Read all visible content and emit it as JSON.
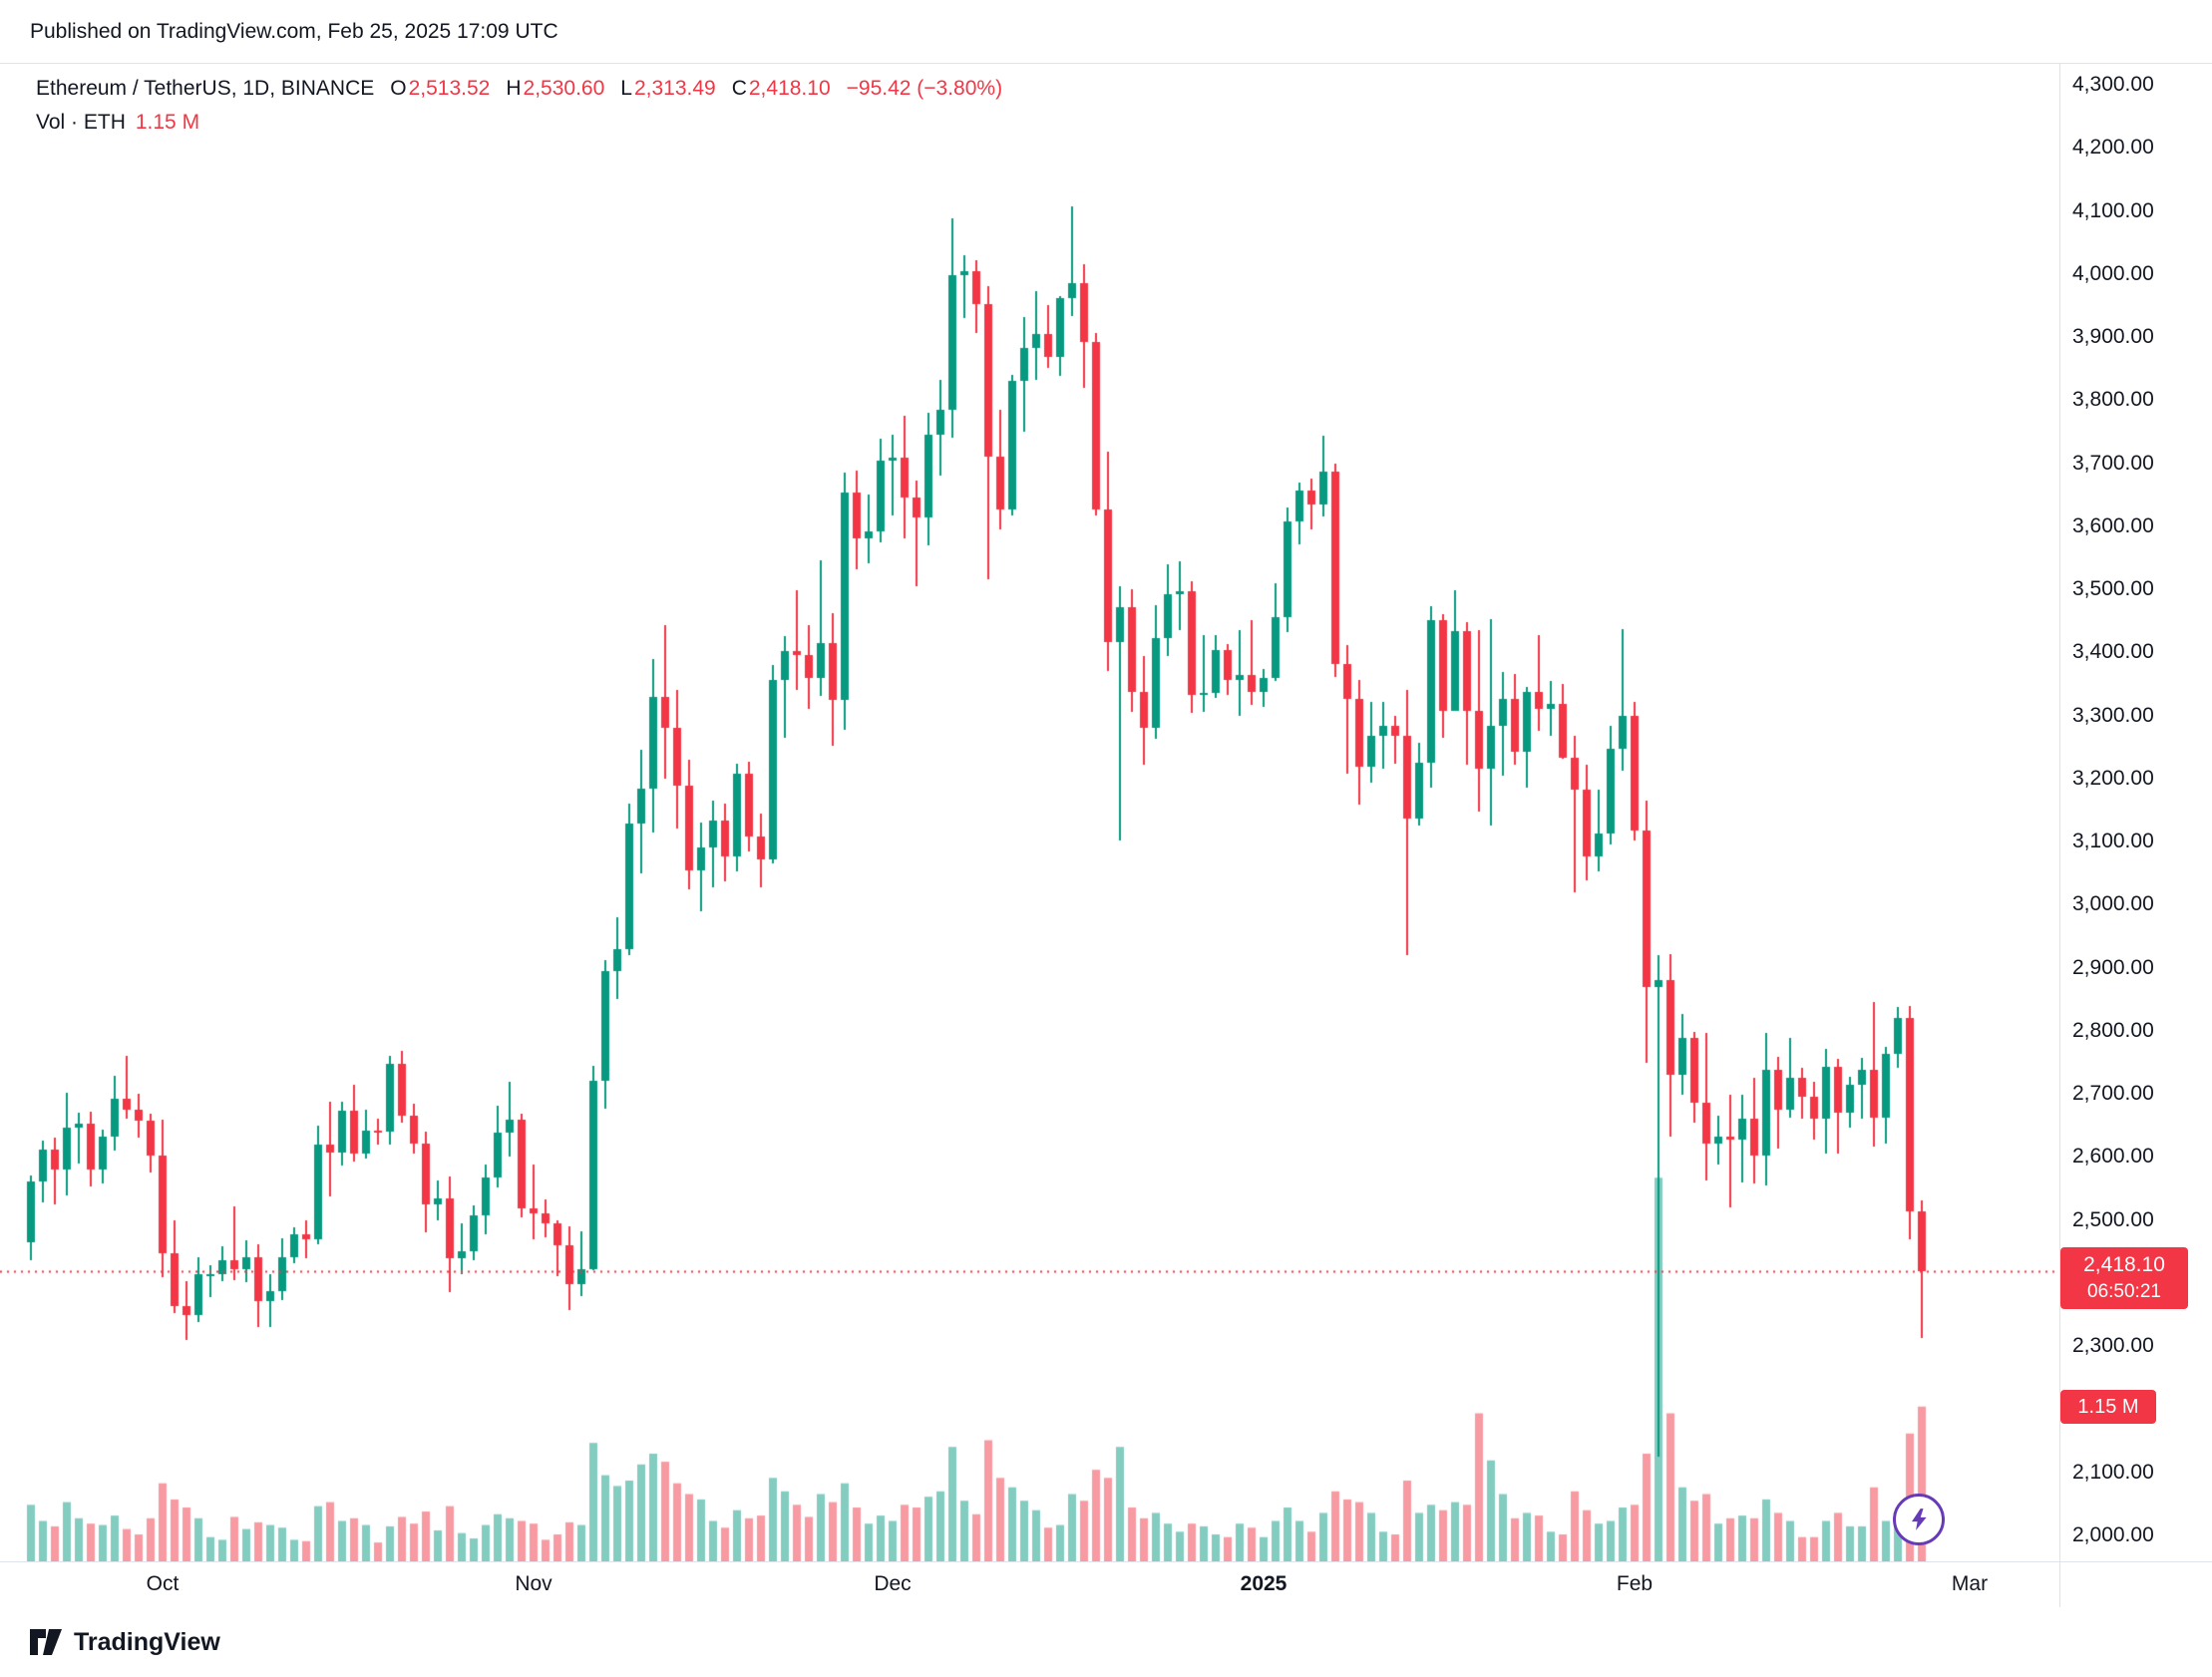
{
  "published": "Published on TradingView.com, Feb 25, 2025 17:09 UTC",
  "legend": {
    "symbol": "Ethereum / TetherUS, 1D, BINANCE",
    "ohlc": [
      {
        "label": "O",
        "value": "2,513.52"
      },
      {
        "label": "H",
        "value": "2,530.60"
      },
      {
        "label": "L",
        "value": "2,313.49"
      },
      {
        "label": "C",
        "value": "2,418.10"
      }
    ],
    "change": "−95.42 (−3.80%)",
    "volume_label": "Vol · ETH",
    "volume_value": "1.15 M"
  },
  "badges": {
    "price": "2,418.10",
    "countdown": "06:50:21",
    "volume": "1.15 M"
  },
  "footer": {
    "brand": "TradingView"
  },
  "chart_data": {
    "type": "candlestick",
    "title": "Ethereum / TetherUS, 1D, BINANCE",
    "symbol": "ETHUSDT",
    "exchange": "BINANCE",
    "interval": "1D",
    "start_date": "2024-09-20",
    "last_price": 2418.1,
    "last_change": -95.42,
    "last_change_pct": -3.8,
    "last_volume_m": 1.15,
    "colors": {
      "up": "#089981",
      "down": "#f23645",
      "vol_up": "#83ccc0",
      "vol_down": "#f89aa2",
      "line": "#f23645",
      "text": "#131722",
      "axis_border": "#e0e3eb"
    },
    "y_axis": {
      "min": 2000,
      "max": 4300,
      "step": 100,
      "tick_labels": [
        "4,300.00",
        "4,200.00",
        "4,100.00",
        "4,000.00",
        "3,900.00",
        "3,800.00",
        "3,700.00",
        "3,600.00",
        "3,500.00",
        "3,400.00",
        "3,300.00",
        "3,200.00",
        "3,100.00",
        "3,000.00",
        "2,900.00",
        "2,800.00",
        "2,700.00",
        "2,600.00",
        "2,500.00",
        "2,400.00",
        "2,300.00",
        "2,200.00",
        "2,100.00",
        "2,000.00"
      ]
    },
    "x_ticks": [
      {
        "label": "Oct",
        "index": 11,
        "bold": false
      },
      {
        "label": "Nov",
        "index": 42,
        "bold": false
      },
      {
        "label": "Dec",
        "index": 72,
        "bold": false
      },
      {
        "label": "2025",
        "index": 103,
        "bold": true
      },
      {
        "label": "Feb",
        "index": 134,
        "bold": false
      },
      {
        "label": "Mar",
        "index": 162,
        "bold": false
      }
    ],
    "candles_format": [
      "open",
      "high",
      "low",
      "close",
      "volume_millions"
    ],
    "candles": [
      [
        2465,
        2571,
        2437,
        2561,
        0.42
      ],
      [
        2561,
        2626,
        2528,
        2612,
        0.3
      ],
      [
        2612,
        2631,
        2525,
        2580,
        0.26
      ],
      [
        2580,
        2702,
        2539,
        2646,
        0.44
      ],
      [
        2646,
        2671,
        2590,
        2653,
        0.32
      ],
      [
        2653,
        2672,
        2553,
        2580,
        0.28
      ],
      [
        2580,
        2644,
        2558,
        2632,
        0.27
      ],
      [
        2632,
        2728,
        2610,
        2693,
        0.34
      ],
      [
        2693,
        2760,
        2660,
        2675,
        0.24
      ],
      [
        2675,
        2700,
        2630,
        2658,
        0.2
      ],
      [
        2658,
        2668,
        2575,
        2602,
        0.32
      ],
      [
        2602,
        2659,
        2410,
        2448,
        0.58
      ],
      [
        2448,
        2499,
        2352,
        2364,
        0.46
      ],
      [
        2364,
        2403,
        2310,
        2350,
        0.4
      ],
      [
        2350,
        2441,
        2339,
        2414,
        0.32
      ],
      [
        2414,
        2428,
        2377,
        2414,
        0.18
      ],
      [
        2414,
        2459,
        2403,
        2436,
        0.16
      ],
      [
        2436,
        2521,
        2404,
        2422,
        0.33
      ],
      [
        2422,
        2468,
        2401,
        2441,
        0.24
      ],
      [
        2441,
        2461,
        2331,
        2371,
        0.29
      ],
      [
        2371,
        2414,
        2330,
        2387,
        0.27
      ],
      [
        2387,
        2471,
        2373,
        2441,
        0.25
      ],
      [
        2441,
        2488,
        2432,
        2478,
        0.16
      ],
      [
        2478,
        2499,
        2440,
        2469,
        0.15
      ],
      [
        2469,
        2650,
        2462,
        2620,
        0.41
      ],
      [
        2620,
        2688,
        2537,
        2607,
        0.44
      ],
      [
        2607,
        2687,
        2587,
        2674,
        0.3
      ],
      [
        2674,
        2714,
        2593,
        2606,
        0.32
      ],
      [
        2606,
        2675,
        2597,
        2641,
        0.27
      ],
      [
        2641,
        2661,
        2620,
        2640,
        0.14
      ],
      [
        2640,
        2760,
        2620,
        2747,
        0.26
      ],
      [
        2747,
        2769,
        2655,
        2666,
        0.33
      ],
      [
        2666,
        2685,
        2606,
        2622,
        0.28
      ],
      [
        2622,
        2640,
        2480,
        2525,
        0.37
      ],
      [
        2525,
        2562,
        2500,
        2535,
        0.23
      ],
      [
        2535,
        2569,
        2385,
        2440,
        0.41
      ],
      [
        2440,
        2494,
        2414,
        2451,
        0.21
      ],
      [
        2451,
        2523,
        2436,
        2508,
        0.17
      ],
      [
        2508,
        2588,
        2477,
        2567,
        0.27
      ],
      [
        2567,
        2681,
        2552,
        2639,
        0.35
      ],
      [
        2639,
        2720,
        2601,
        2659,
        0.32
      ],
      [
        2659,
        2669,
        2505,
        2518,
        0.3
      ],
      [
        2518,
        2588,
        2470,
        2511,
        0.28
      ],
      [
        2511,
        2532,
        2472,
        2495,
        0.16
      ],
      [
        2495,
        2500,
        2411,
        2460,
        0.2
      ],
      [
        2460,
        2490,
        2357,
        2398,
        0.29
      ],
      [
        2398,
        2482,
        2380,
        2422,
        0.27
      ],
      [
        2422,
        2744,
        2420,
        2721,
        0.88
      ],
      [
        2721,
        2912,
        2676,
        2895,
        0.64
      ],
      [
        2895,
        2980,
        2850,
        2930,
        0.56
      ],
      [
        2930,
        3160,
        2920,
        3128,
        0.6
      ],
      [
        3128,
        3245,
        3050,
        3184,
        0.72
      ],
      [
        3184,
        3390,
        3115,
        3330,
        0.8
      ],
      [
        3330,
        3444,
        3200,
        3280,
        0.74
      ],
      [
        3280,
        3340,
        3120,
        3188,
        0.58
      ],
      [
        3188,
        3230,
        3025,
        3055,
        0.5
      ],
      [
        3055,
        3130,
        2990,
        3090,
        0.46
      ],
      [
        3090,
        3165,
        3028,
        3133,
        0.3
      ],
      [
        3133,
        3160,
        3037,
        3076,
        0.25
      ],
      [
        3076,
        3223,
        3052,
        3207,
        0.38
      ],
      [
        3207,
        3227,
        3085,
        3108,
        0.32
      ],
      [
        3108,
        3145,
        3027,
        3072,
        0.34
      ],
      [
        3072,
        3380,
        3065,
        3356,
        0.62
      ],
      [
        3356,
        3426,
        3265,
        3402,
        0.52
      ],
      [
        3402,
        3498,
        3340,
        3396,
        0.42
      ],
      [
        3396,
        3444,
        3310,
        3360,
        0.33
      ],
      [
        3360,
        3546,
        3331,
        3414,
        0.5
      ],
      [
        3414,
        3462,
        3252,
        3324,
        0.44
      ],
      [
        3324,
        3685,
        3278,
        3653,
        0.58
      ],
      [
        3653,
        3689,
        3531,
        3580,
        0.4
      ],
      [
        3580,
        3650,
        3541,
        3592,
        0.28
      ],
      [
        3592,
        3739,
        3575,
        3704,
        0.34
      ],
      [
        3704,
        3745,
        3617,
        3708,
        0.3
      ],
      [
        3708,
        3775,
        3580,
        3645,
        0.42
      ],
      [
        3645,
        3672,
        3505,
        3614,
        0.4
      ],
      [
        3614,
        3780,
        3570,
        3745,
        0.48
      ],
      [
        3745,
        3832,
        3680,
        3785,
        0.52
      ],
      [
        3785,
        4088,
        3740,
        3998,
        0.85
      ],
      [
        3998,
        4030,
        3930,
        4005,
        0.45
      ],
      [
        4005,
        4022,
        3906,
        3952,
        0.35
      ],
      [
        3952,
        3980,
        3516,
        3710,
        0.9
      ],
      [
        3710,
        3785,
        3595,
        3626,
        0.62
      ],
      [
        3626,
        3840,
        3617,
        3830,
        0.55
      ],
      [
        3830,
        3932,
        3750,
        3882,
        0.45
      ],
      [
        3882,
        3972,
        3832,
        3905,
        0.38
      ],
      [
        3905,
        3950,
        3851,
        3868,
        0.25
      ],
      [
        3868,
        3965,
        3838,
        3962,
        0.27
      ],
      [
        3962,
        4107,
        3934,
        3986,
        0.5
      ],
      [
        3986,
        4015,
        3820,
        3892,
        0.45
      ],
      [
        3892,
        3907,
        3617,
        3626,
        0.68
      ],
      [
        3626,
        3718,
        3370,
        3416,
        0.62
      ],
      [
        3416,
        3505,
        3101,
        3472,
        0.85
      ],
      [
        3472,
        3500,
        3306,
        3337,
        0.4
      ],
      [
        3337,
        3394,
        3222,
        3280,
        0.32
      ],
      [
        3280,
        3475,
        3263,
        3423,
        0.36
      ],
      [
        3423,
        3540,
        3395,
        3492,
        0.28
      ],
      [
        3492,
        3545,
        3435,
        3497,
        0.22
      ],
      [
        3497,
        3512,
        3304,
        3332,
        0.28
      ],
      [
        3332,
        3428,
        3305,
        3335,
        0.26
      ],
      [
        3335,
        3428,
        3328,
        3404,
        0.2
      ],
      [
        3404,
        3413,
        3332,
        3356,
        0.18
      ],
      [
        3356,
        3436,
        3300,
        3364,
        0.28
      ],
      [
        3364,
        3451,
        3316,
        3337,
        0.25
      ],
      [
        3337,
        3374,
        3313,
        3360,
        0.18
      ],
      [
        3360,
        3509,
        3355,
        3456,
        0.3
      ],
      [
        3456,
        3629,
        3432,
        3608,
        0.4
      ],
      [
        3608,
        3670,
        3572,
        3657,
        0.3
      ],
      [
        3657,
        3675,
        3595,
        3635,
        0.22
      ],
      [
        3635,
        3744,
        3615,
        3687,
        0.36
      ],
      [
        3687,
        3700,
        3361,
        3381,
        0.52
      ],
      [
        3381,
        3412,
        3208,
        3327,
        0.46
      ],
      [
        3327,
        3357,
        3158,
        3218,
        0.44
      ],
      [
        3218,
        3322,
        3193,
        3267,
        0.36
      ],
      [
        3267,
        3322,
        3216,
        3283,
        0.22
      ],
      [
        3283,
        3299,
        3224,
        3267,
        0.2
      ],
      [
        3267,
        3340,
        2920,
        3137,
        0.6
      ],
      [
        3137,
        3256,
        3125,
        3225,
        0.36
      ],
      [
        3225,
        3473,
        3186,
        3451,
        0.42
      ],
      [
        3451,
        3460,
        3265,
        3308,
        0.38
      ],
      [
        3308,
        3498,
        3307,
        3434,
        0.44
      ],
      [
        3434,
        3448,
        3222,
        3308,
        0.42
      ],
      [
        3308,
        3436,
        3148,
        3215,
        1.1
      ],
      [
        3215,
        3453,
        3126,
        3284,
        0.75
      ],
      [
        3284,
        3369,
        3204,
        3327,
        0.5
      ],
      [
        3327,
        3366,
        3222,
        3242,
        0.32
      ],
      [
        3242,
        3345,
        3185,
        3338,
        0.36
      ],
      [
        3338,
        3428,
        3275,
        3310,
        0.34
      ],
      [
        3310,
        3354,
        3268,
        3318,
        0.22
      ],
      [
        3318,
        3350,
        3231,
        3233,
        0.2
      ],
      [
        3233,
        3268,
        3020,
        3183,
        0.52
      ],
      [
        3183,
        3222,
        3038,
        3077,
        0.38
      ],
      [
        3077,
        3183,
        3053,
        3113,
        0.28
      ],
      [
        3113,
        3283,
        3095,
        3247,
        0.3
      ],
      [
        3247,
        3437,
        3213,
        3300,
        0.4
      ],
      [
        3300,
        3322,
        3101,
        3117,
        0.42
      ],
      [
        3117,
        3165,
        2750,
        2870,
        0.8
      ],
      [
        2870,
        2920,
        2125,
        2880,
        2.85
      ],
      [
        2880,
        2921,
        2632,
        2731,
        1.1
      ],
      [
        2731,
        2827,
        2699,
        2788,
        0.55
      ],
      [
        2788,
        2798,
        2655,
        2686,
        0.45
      ],
      [
        2686,
        2797,
        2562,
        2622,
        0.5
      ],
      [
        2622,
        2665,
        2588,
        2632,
        0.28
      ],
      [
        2632,
        2698,
        2520,
        2627,
        0.32
      ],
      [
        2627,
        2699,
        2559,
        2661,
        0.34
      ],
      [
        2661,
        2725,
        2558,
        2603,
        0.32
      ],
      [
        2603,
        2796,
        2555,
        2738,
        0.46
      ],
      [
        2738,
        2758,
        2613,
        2675,
        0.36
      ],
      [
        2675,
        2789,
        2662,
        2726,
        0.3
      ],
      [
        2726,
        2741,
        2660,
        2696,
        0.18
      ],
      [
        2696,
        2720,
        2627,
        2661,
        0.18
      ],
      [
        2661,
        2772,
        2605,
        2743,
        0.3
      ],
      [
        2743,
        2755,
        2605,
        2671,
        0.36
      ],
      [
        2671,
        2727,
        2647,
        2715,
        0.26
      ],
      [
        2715,
        2757,
        2661,
        2738,
        0.26
      ],
      [
        2738,
        2845,
        2617,
        2662,
        0.55
      ],
      [
        2662,
        2774,
        2622,
        2764,
        0.3
      ],
      [
        2764,
        2838,
        2742,
        2820,
        0.28
      ],
      [
        2820,
        2839,
        2470,
        2513,
        0.95
      ],
      [
        2513.52,
        2530.6,
        2313.49,
        2418.1,
        1.15
      ]
    ]
  }
}
